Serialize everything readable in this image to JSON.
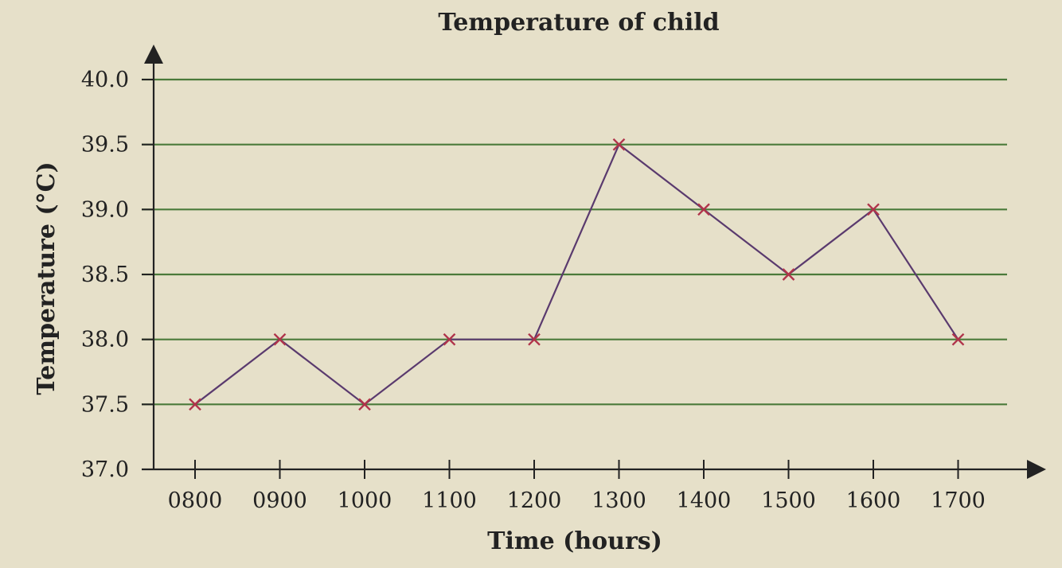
{
  "chart_data": {
    "type": "line",
    "title": "Temperature of child",
    "xlabel": "Time (hours)",
    "ylabel": "Temperature (°C)",
    "categories": [
      "0800",
      "0900",
      "1000",
      "1100",
      "1200",
      "1300",
      "1400",
      "1500",
      "1600",
      "1700"
    ],
    "series": [
      {
        "values": [
          37.5,
          38.0,
          37.5,
          38.0,
          38.0,
          39.5,
          39.0,
          38.5,
          39.0,
          38.0
        ]
      }
    ],
    "yticks": [
      "37.0",
      "37.5",
      "38.0",
      "38.5",
      "39.0",
      "39.5",
      "40.0"
    ],
    "ylim": [
      37.0,
      40.0
    ],
    "grid": true,
    "colors": {
      "background": "#e6e0c9",
      "grid": "#4a7a3a",
      "line": "#5a3a6e",
      "marker": "#b0334a",
      "axis": "#222222"
    }
  }
}
